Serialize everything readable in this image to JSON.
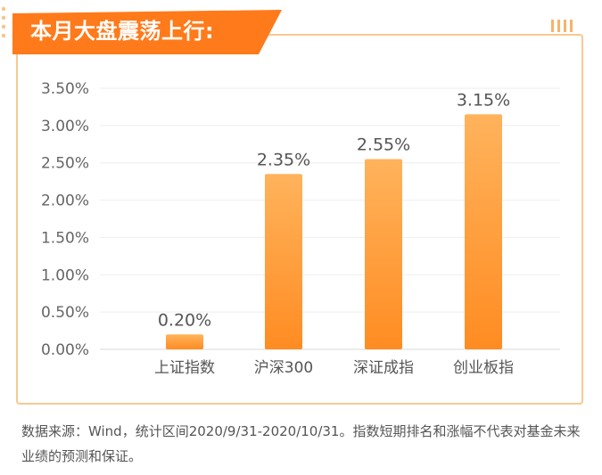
{
  "title": "本月大盘震荡上行:",
  "colors": {
    "accent": "#ff8a1f",
    "banner": "#ff7a1a",
    "bar_top": "#ffb35c",
    "bar_bottom": "#ff8c22",
    "card_border": "#f7c994"
  },
  "chart_data": {
    "type": "bar",
    "categories": [
      "上证指数",
      "沪深300",
      "深证成指",
      "创业板指"
    ],
    "values": [
      0.2,
      2.35,
      2.55,
      3.15
    ],
    "data_labels": [
      "0.20%",
      "2.35%",
      "2.55%",
      "3.15%"
    ],
    "y_ticks": [
      "0.00%",
      "0.50%",
      "1.00%",
      "1.50%",
      "2.00%",
      "2.50%",
      "3.00%",
      "3.50%"
    ],
    "ylim": [
      0,
      3.5
    ],
    "unit": "%",
    "grid": true,
    "legend": "none"
  },
  "footnote": "数据来源：Wind，统计区间2020/9/31-2020/10/31。指数短期排名和涨幅不代表对基金未来业绩的预测和保证。"
}
